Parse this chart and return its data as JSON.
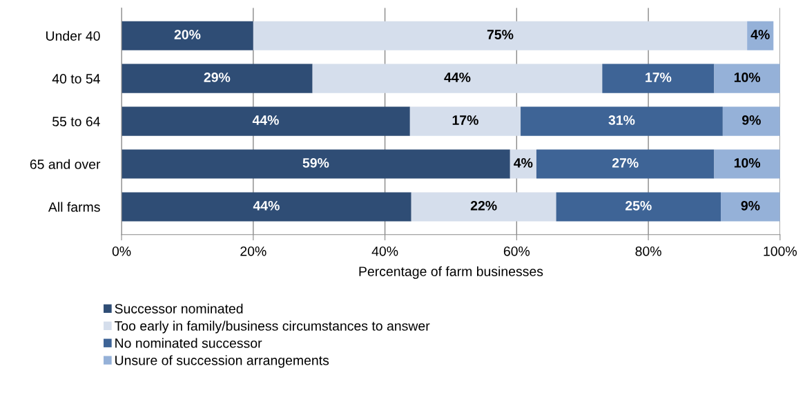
{
  "chart_data": {
    "type": "bar",
    "orientation": "horizontal",
    "stacked": true,
    "categories": [
      "Under 40",
      "40 to 54",
      "55 to 64",
      "65 and over",
      "All farms"
    ],
    "xlabel": "Percentage of farm businesses",
    "xlim": [
      0,
      100
    ],
    "xticks": [
      {
        "value": 0,
        "label": "0%"
      },
      {
        "value": 20,
        "label": "20%"
      },
      {
        "value": 40,
        "label": "40%"
      },
      {
        "value": 60,
        "label": "60%"
      },
      {
        "value": 80,
        "label": "80%"
      },
      {
        "value": 100,
        "label": "100%"
      }
    ],
    "grid": "x",
    "legend": "bottom",
    "series": [
      {
        "name": "Successor nominated",
        "color": "#2f4d75",
        "values": [
          20,
          29,
          43.8,
          59,
          44
        ],
        "value_labels": [
          "20%",
          "29%",
          "44%",
          "59%",
          "44%"
        ]
      },
      {
        "name": "Too early in family/business circumstances to answer",
        "color": "#d5deec",
        "values": [
          75,
          44,
          16.8,
          4,
          22
        ],
        "value_labels": [
          "75%",
          "44%",
          "17%",
          "4%",
          "22%"
        ]
      },
      {
        "name": "No nominated successor",
        "color": "#3e6496",
        "values": [
          null,
          17,
          30.7,
          27,
          25
        ],
        "value_labels": [
          null,
          "17%",
          "31%",
          "27%",
          "25%"
        ]
      },
      {
        "name": "Unsure of succession arrangements",
        "color": "#95b1d8",
        "values": [
          4,
          10,
          8.7,
          10,
          9
        ],
        "value_labels": [
          "4%",
          "10%",
          "9%",
          "10%",
          "9%"
        ]
      }
    ]
  }
}
